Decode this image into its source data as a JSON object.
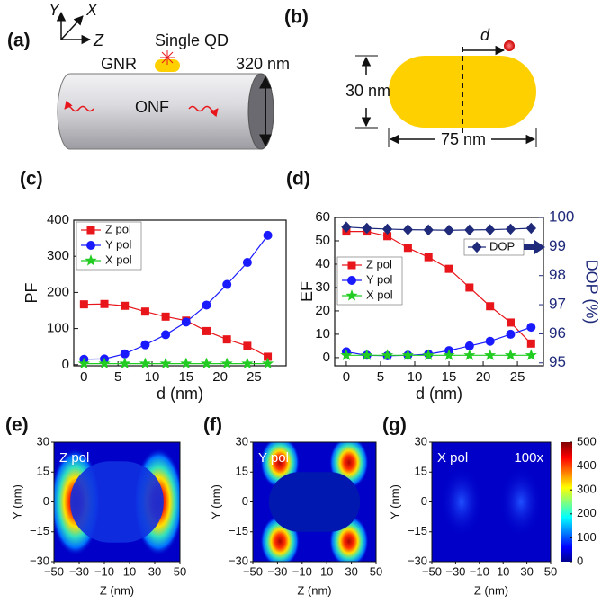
{
  "panel_labels": [
    "(a)",
    "(b)",
    "(c)",
    "(d)",
    "(e)",
    "(f)",
    "(g)"
  ],
  "diagram_a": {
    "axes": [
      "Y",
      "X",
      "Z"
    ],
    "gnr": "GNR",
    "qd": "Single QD",
    "diameter": "320 nm",
    "fiber": "ONF"
  },
  "diagram_b": {
    "shift": "d",
    "height": "30 nm",
    "length": "75 nm"
  },
  "chart_data": [
    {
      "type": "line",
      "ylabel": "PF",
      "xlabel": "d (nm)",
      "x": [
        0,
        3,
        6,
        9,
        12,
        15,
        18,
        21,
        24,
        27
      ],
      "xlim": [
        -1.5,
        29.7
      ],
      "xticks": [
        0,
        5,
        10,
        15,
        20,
        25
      ],
      "ylim": [
        -3,
        400
      ],
      "yticks": [
        0,
        100,
        200,
        300,
        400
      ],
      "legend": "upper left",
      "series": [
        {
          "name": "Z pol",
          "color": "#e8161b",
          "marker": "square",
          "values": [
            167,
            168,
            163,
            147,
            133,
            122,
            93,
            70,
            52,
            22
          ]
        },
        {
          "name": "Y pol",
          "color": "#1a1aff",
          "marker": "circle",
          "values": [
            15,
            16,
            30,
            55,
            83,
            118,
            165,
            222,
            283,
            358
          ]
        },
        {
          "name": "X pol",
          "color": "#22cc22",
          "marker": "star",
          "values": [
            3,
            3,
            3,
            3,
            3,
            3,
            3,
            3,
            3,
            3
          ]
        }
      ]
    },
    {
      "type": "line",
      "ylabel": "EF",
      "y2label": "DOP (%)",
      "xlabel": "d (nm)",
      "x": [
        0,
        3,
        6,
        9,
        12,
        15,
        18,
        21,
        24,
        27
      ],
      "xlim": [
        -1.7,
        28.8
      ],
      "xticks": [
        0,
        5,
        10,
        15,
        20,
        25
      ],
      "ylim": [
        -3.5,
        60
      ],
      "yticks": [
        0,
        10,
        20,
        30,
        40,
        50,
        60
      ],
      "y2lim": [
        94.9,
        100
      ],
      "y2ticks": [
        95,
        96,
        97,
        98,
        99,
        100
      ],
      "legend": "center left",
      "series": [
        {
          "name": "Z pol",
          "color": "#e8161b",
          "marker": "square",
          "values": [
            54,
            54,
            52,
            47,
            43,
            38,
            30,
            22,
            15,
            6
          ]
        },
        {
          "name": "Y pol",
          "color": "#1a1aff",
          "marker": "circle",
          "values": [
            2.5,
            1,
            0.8,
            1,
            1.5,
            3,
            5,
            7,
            10,
            13
          ]
        },
        {
          "name": "X pol",
          "color": "#22cc22",
          "marker": "star",
          "values": [
            1,
            1,
            1,
            1,
            1,
            1,
            1,
            1,
            1,
            1
          ]
        },
        {
          "name": "DOP",
          "color": "#1f2a7a",
          "marker": "diamond",
          "axis": "y2",
          "values": [
            99.67,
            99.63,
            99.6,
            99.58,
            99.57,
            99.56,
            99.57,
            99.58,
            99.6,
            99.63
          ]
        }
      ]
    },
    {
      "type": "heatmap",
      "annotations": [
        "Z pol"
      ],
      "xlabel": "Z (nm)",
      "ylabel": "Y (nm)",
      "xlim": [
        -50,
        50
      ],
      "ylim": [
        -30,
        30
      ],
      "xticks": [
        {
          "value": -50,
          "label": "−50"
        },
        {
          "value": -30,
          "label": "−30"
        },
        {
          "value": -10,
          "label": "−10"
        },
        10,
        30,
        50
      ],
      "yticks": [
        {
          "value": -30,
          "label": "−30"
        },
        {
          "value": -15,
          "label": "−15"
        },
        0,
        15,
        30
      ]
    },
    {
      "type": "heatmap",
      "annotations": [
        "Y pol"
      ],
      "xlabel": "Z (nm)",
      "ylabel": "Y (nm)",
      "xlim": [
        -50,
        50
      ],
      "ylim": [
        -30,
        30
      ],
      "xticks": [
        {
          "value": -50,
          "label": "−50"
        },
        {
          "value": -30,
          "label": "−30"
        },
        {
          "value": -10,
          "label": "−10"
        },
        10,
        30,
        50
      ],
      "yticks": [
        {
          "value": -30,
          "label": "−30"
        },
        {
          "value": -15,
          "label": "−15"
        },
        0,
        15,
        30
      ]
    },
    {
      "type": "heatmap",
      "annotations": [
        "X pol",
        "100x"
      ],
      "xlabel": "Z (nm)",
      "ylabel": "Y (nm)",
      "xlim": [
        -50,
        50
      ],
      "ylim": [
        -30,
        30
      ],
      "xticks": [
        {
          "value": -50,
          "label": "−50"
        },
        {
          "value": -30,
          "label": "−30"
        },
        {
          "value": -10,
          "label": "−10"
        },
        10,
        30,
        50
      ],
      "yticks": [
        {
          "value": -30,
          "label": "−30"
        },
        {
          "value": -15,
          "label": "−15"
        },
        0,
        15,
        30
      ],
      "colorbar": {
        "lim": [
          0,
          500
        ],
        "ticks": [
          0,
          100,
          200,
          300,
          400,
          500
        ]
      }
    }
  ]
}
